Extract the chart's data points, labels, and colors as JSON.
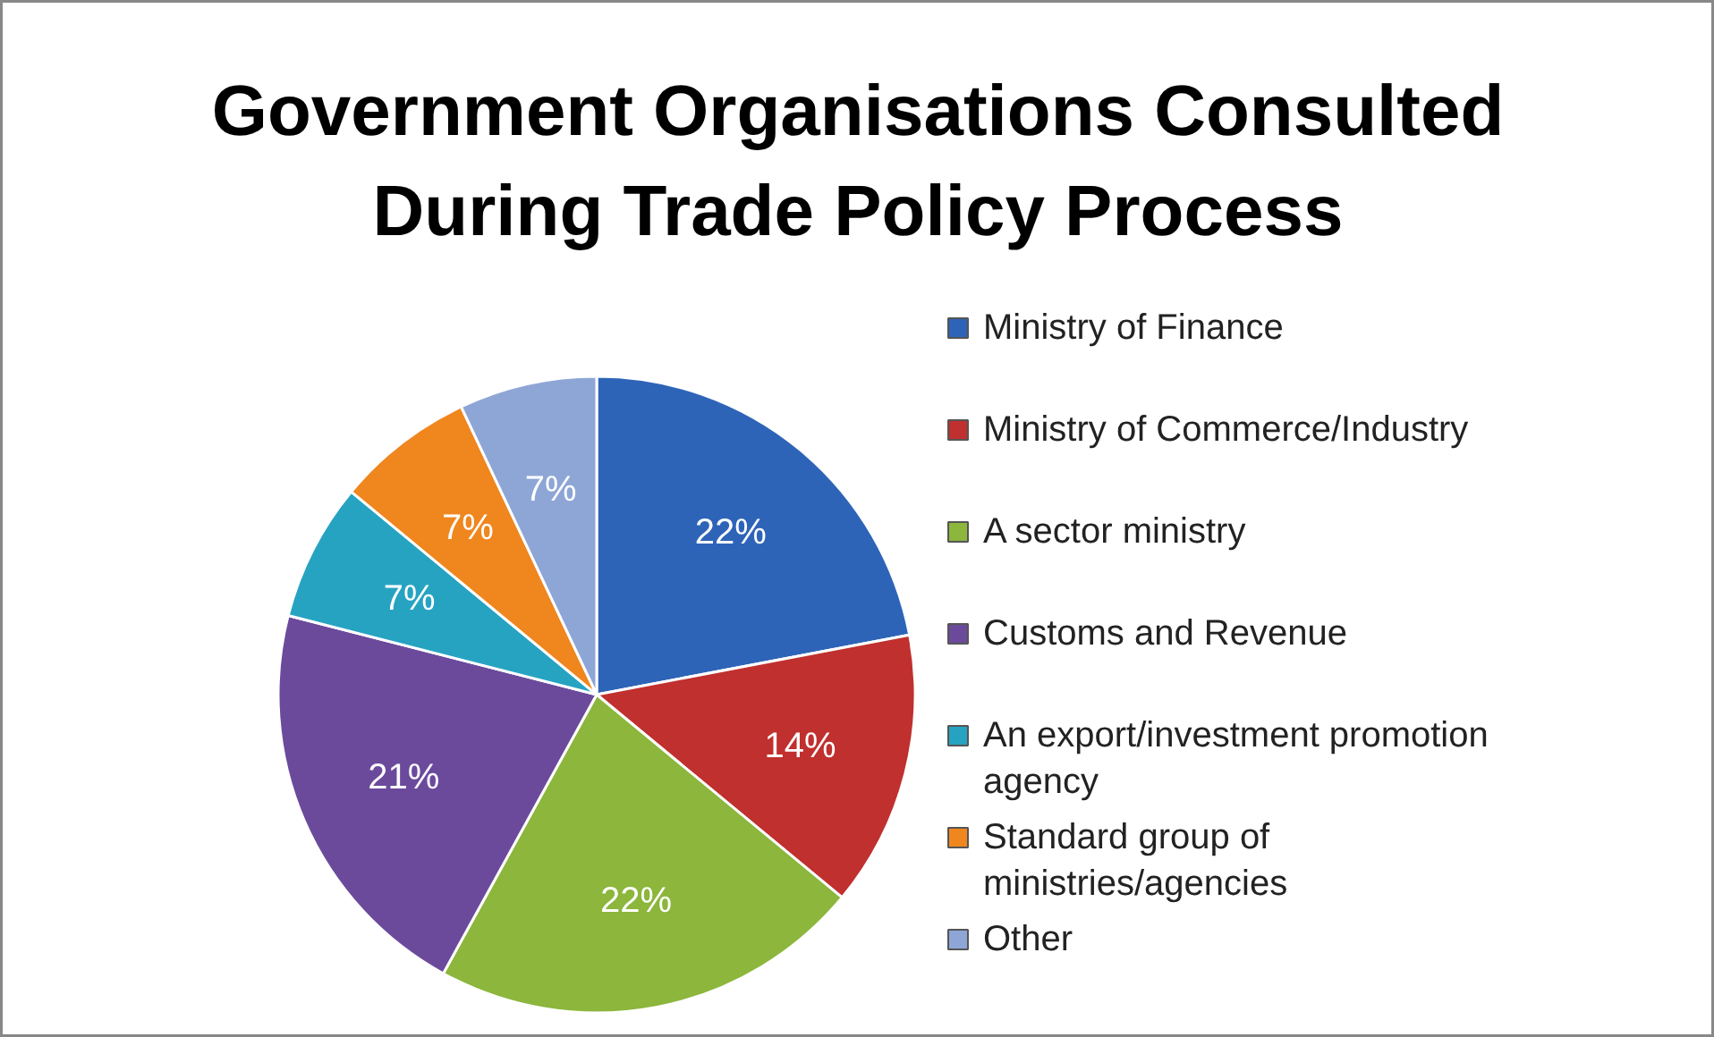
{
  "chart_data": {
    "type": "pie",
    "title": "Government Organisations Consulted During Trade Policy Process",
    "categories": [
      "Ministry of Finance",
      "Ministry of Commerce/Industry",
      "A sector ministry",
      "Customs and Revenue",
      "An export/investment promotion agency",
      "Standard group of ministries/agencies",
      "Other"
    ],
    "values": [
      22,
      14,
      22,
      21,
      7,
      7,
      7
    ],
    "value_labels": [
      "22%",
      "14%",
      "22%",
      "21%",
      "7%",
      "7%",
      "7%"
    ],
    "colors": [
      "#2e64b8",
      "#c0302e",
      "#8cb63c",
      "#6b4a9c",
      "#27a3c2",
      "#f0861e",
      "#8ea6d6"
    ],
    "legend": "right"
  }
}
